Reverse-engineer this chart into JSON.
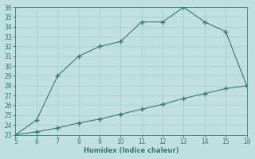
{
  "xlabel": "Humidex (Indice chaleur)",
  "x_upper": [
    5,
    6,
    7,
    8,
    9,
    10,
    11,
    12,
    13,
    14,
    15,
    16
  ],
  "y_upper": [
    23,
    24.5,
    29,
    31,
    32,
    32.5,
    34.5,
    34.5,
    36,
    34.5,
    33.5,
    28
  ],
  "x_lower": [
    5,
    6,
    7,
    8,
    9,
    10,
    11,
    12,
    13,
    14,
    15,
    16
  ],
  "y_lower": [
    23,
    23.3,
    23.7,
    24.2,
    24.6,
    25.1,
    25.6,
    26.1,
    26.7,
    27.2,
    27.7,
    28.0
  ],
  "line_color": "#2e7d6e",
  "bg_color": "#c2e0e0",
  "grid_color": "#a8cccc",
  "ylim": [
    23,
    36
  ],
  "xlim": [
    5,
    16
  ],
  "yticks": [
    23,
    24,
    25,
    26,
    27,
    28,
    29,
    30,
    31,
    32,
    33,
    34,
    35,
    36
  ],
  "xticks": [
    5,
    6,
    7,
    8,
    9,
    10,
    11,
    12,
    13,
    14,
    15,
    16
  ],
  "figsize": [
    3.2,
    2.0
  ],
  "dpi": 100
}
